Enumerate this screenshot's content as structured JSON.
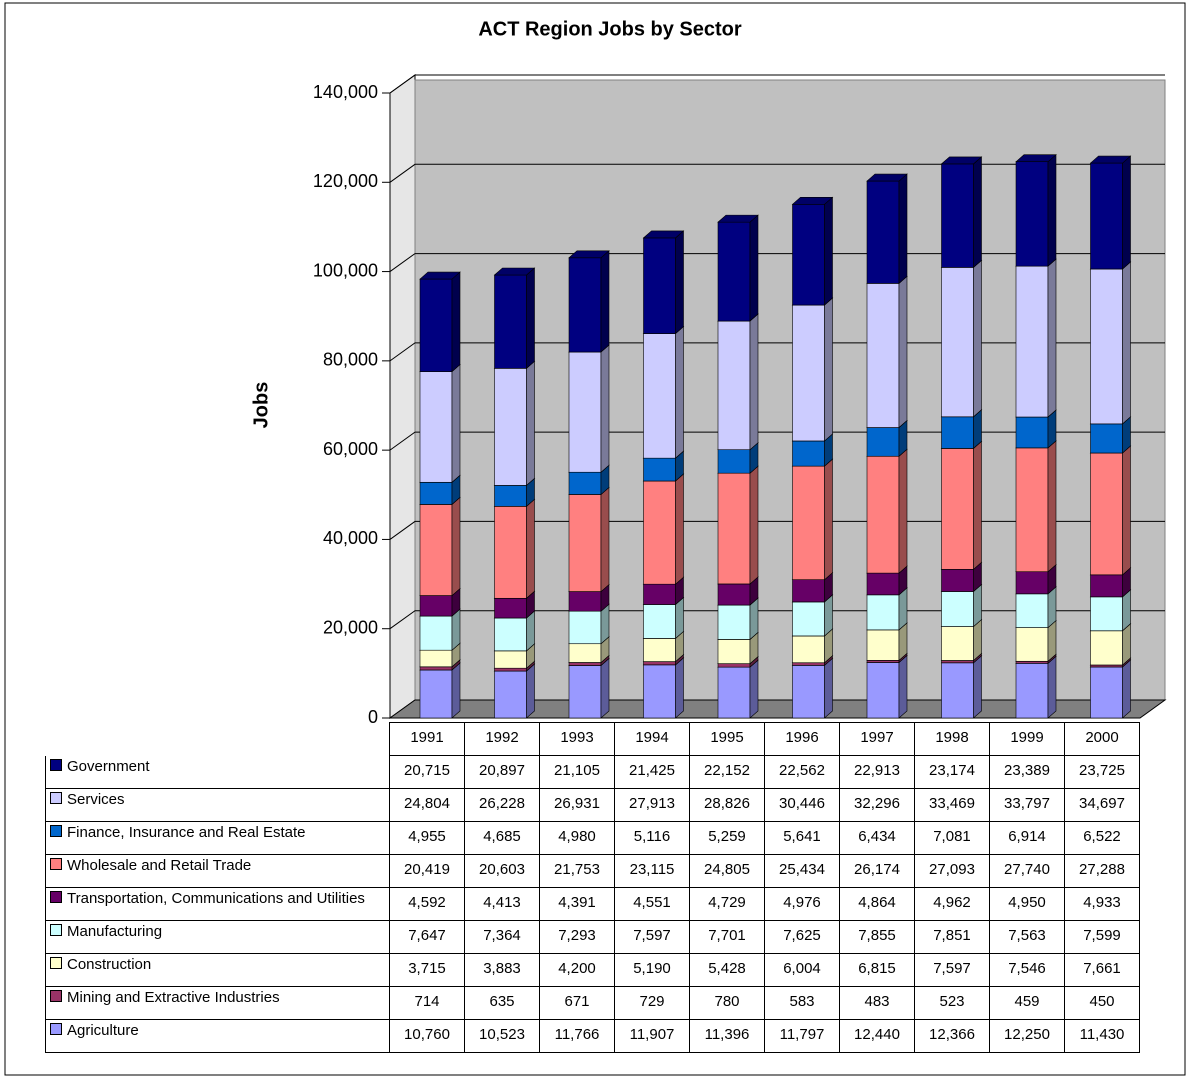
{
  "chart_data": {
    "type": "stacked-bar-3d",
    "title": "ACT Region Jobs by Sector",
    "ylabel": "Jobs",
    "categories": [
      "1991",
      "1992",
      "1993",
      "1994",
      "1995",
      "1996",
      "1997",
      "1998",
      "1999",
      "2000"
    ],
    "ylim": [
      0,
      140000
    ],
    "yticks": [
      0,
      {
        "value": 20000,
        "label": "20,000"
      },
      {
        "value": 40000,
        "label": "40,000"
      },
      {
        "value": 60000,
        "label": "60,000"
      },
      {
        "value": 80000,
        "label": "80,000"
      },
      {
        "value": 100000,
        "label": "100,000"
      },
      {
        "value": 120000,
        "label": "120,000"
      },
      {
        "value": 140000,
        "label": "140,000"
      }
    ],
    "grid": true,
    "series": [
      {
        "name": "Government",
        "color": "#000080",
        "values": [
          20715,
          20897,
          21105,
          21425,
          22152,
          22562,
          22913,
          23174,
          23389,
          23725
        ],
        "value_labels": [
          "20,715",
          "20,897",
          "21,105",
          "21,425",
          "22,152",
          "22,562",
          "22,913",
          "23,174",
          "23,389",
          "23,725"
        ]
      },
      {
        "name": "Services",
        "color": "#ccccff",
        "values": [
          24804,
          26228,
          26931,
          27913,
          28826,
          30446,
          32296,
          33469,
          33797,
          34697
        ],
        "value_labels": [
          "24,804",
          "26,228",
          "26,931",
          "27,913",
          "28,826",
          "30,446",
          "32,296",
          "33,469",
          "33,797",
          "34,697"
        ]
      },
      {
        "name": "Finance, Insurance and Real Estate",
        "color": "#0066cc",
        "values": [
          4955,
          4685,
          4980,
          5116,
          5259,
          5641,
          6434,
          7081,
          6914,
          6522
        ],
        "value_labels": [
          "4,955",
          "4,685",
          "4,980",
          "5,116",
          "5,259",
          "5,641",
          "6,434",
          "7,081",
          "6,914",
          "6,522"
        ]
      },
      {
        "name": "Wholesale and Retail Trade",
        "color": "#ff8080",
        "values": [
          20419,
          20603,
          21753,
          23115,
          24805,
          25434,
          26174,
          27093,
          27740,
          27288
        ],
        "value_labels": [
          "20,419",
          "20,603",
          "21,753",
          "23,115",
          "24,805",
          "25,434",
          "26,174",
          "27,093",
          "27,740",
          "27,288"
        ]
      },
      {
        "name": "Transportation, Communications and Utilities",
        "color": "#660066",
        "values": [
          4592,
          4413,
          4391,
          4551,
          4729,
          4976,
          4864,
          4962,
          4950,
          4933
        ],
        "value_labels": [
          "4,592",
          "4,413",
          "4,391",
          "4,551",
          "4,729",
          "4,976",
          "4,864",
          "4,962",
          "4,950",
          "4,933"
        ]
      },
      {
        "name": "Manufacturing",
        "color": "#ccffff",
        "values": [
          7647,
          7364,
          7293,
          7597,
          7701,
          7625,
          7855,
          7851,
          7563,
          7599
        ],
        "value_labels": [
          "7,647",
          "7,364",
          "7,293",
          "7,597",
          "7,701",
          "7,625",
          "7,855",
          "7,851",
          "7,563",
          "7,599"
        ]
      },
      {
        "name": "Construction",
        "color": "#ffffcc",
        "values": [
          3715,
          3883,
          4200,
          5190,
          5428,
          6004,
          6815,
          7597,
          7546,
          7661
        ],
        "value_labels": [
          "3,715",
          "3,883",
          "4,200",
          "5,190",
          "5,428",
          "6,004",
          "6,815",
          "7,597",
          "7,546",
          "7,661"
        ]
      },
      {
        "name": "Mining and Extractive Industries",
        "color": "#993366",
        "values": [
          714,
          635,
          671,
          729,
          780,
          583,
          483,
          523,
          459,
          450
        ]
      },
      {
        "name": "Agriculture",
        "color": "#9999ff",
        "values": [
          10760,
          10523,
          11766,
          11907,
          11396,
          11797,
          12440,
          12366,
          12250,
          11430
        ],
        "value_labels": [
          "10,760",
          "10,523",
          "11,766",
          "11,907",
          "11,396",
          "11,797",
          "12,440",
          "12,366",
          "12,250",
          "11,430"
        ]
      }
    ]
  }
}
